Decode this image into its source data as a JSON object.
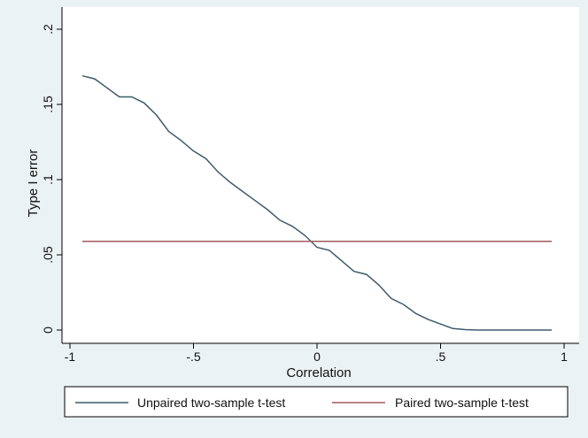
{
  "chart_data": {
    "type": "line",
    "xlabel": "Correlation",
    "ylabel": "Type I error",
    "xlim": [
      -1,
      1
    ],
    "ylim": [
      0,
      0.2
    ],
    "xticks": [
      {
        "value": -1,
        "label": "-1"
      },
      {
        "value": -0.5,
        "label": "-.5"
      },
      {
        "value": 0,
        "label": "0"
      },
      {
        "value": 0.5,
        "label": ".5"
      },
      {
        "value": 1,
        "label": "1"
      }
    ],
    "yticks": [
      {
        "value": 0,
        "label": "0"
      },
      {
        "value": 0.05,
        "label": ".05"
      },
      {
        "value": 0.1,
        "label": ".1"
      },
      {
        "value": 0.15,
        "label": ".15"
      },
      {
        "value": 0.2,
        "label": ".2"
      }
    ],
    "grid": false,
    "legend_position": "bottom",
    "series": [
      {
        "name": "Unpaired two-sample t-test",
        "color": "#3e5b6b",
        "x": [
          -0.95,
          -0.9,
          -0.85,
          -0.8,
          -0.75,
          -0.7,
          -0.65,
          -0.6,
          -0.55,
          -0.5,
          -0.45,
          -0.4,
          -0.35,
          -0.3,
          -0.25,
          -0.2,
          -0.15,
          -0.1,
          -0.05,
          0,
          0.05,
          0.1,
          0.15,
          0.2,
          0.25,
          0.3,
          0.35,
          0.4,
          0.45,
          0.5,
          0.55,
          0.6,
          0.65,
          0.7,
          0.75,
          0.8,
          0.85,
          0.9,
          0.95
        ],
        "y": [
          0.169,
          0.167,
          0.161,
          0.155,
          0.155,
          0.151,
          0.143,
          0.132,
          0.126,
          0.119,
          0.114,
          0.105,
          0.098,
          0.092,
          0.086,
          0.08,
          0.073,
          0.069,
          0.063,
          0.055,
          0.053,
          0.046,
          0.039,
          0.037,
          0.03,
          0.021,
          0.017,
          0.011,
          0.007,
          0.004,
          0.001,
          0.0003,
          0,
          0,
          0,
          0,
          0,
          0,
          0
        ]
      },
      {
        "name": "Paired two-sample t-test",
        "color": "#a05a5f",
        "x": [
          -0.95,
          0.95
        ],
        "y": [
          0.059,
          0.059
        ]
      }
    ]
  }
}
